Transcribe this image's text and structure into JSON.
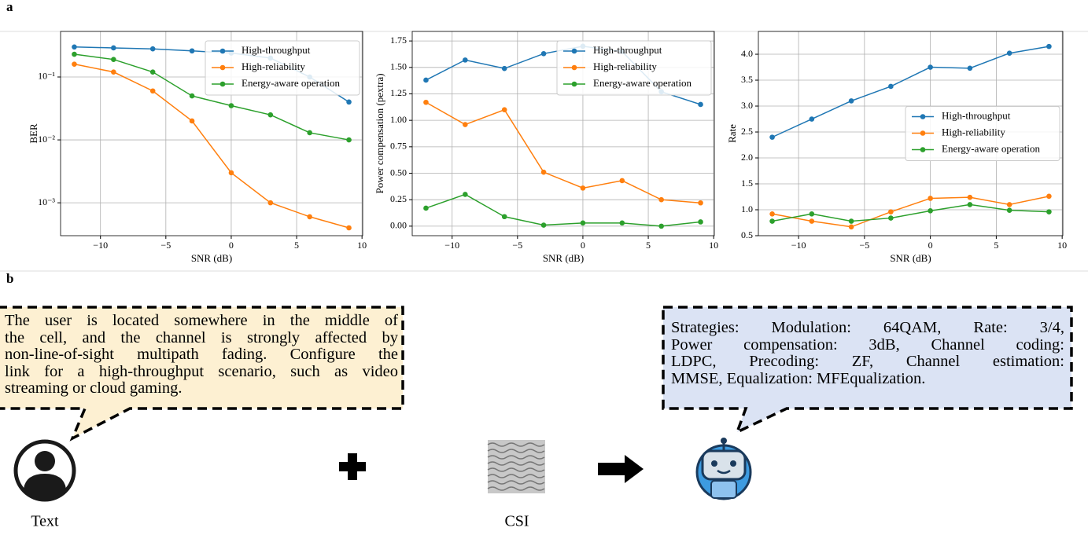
{
  "panels": [
    "a",
    "b"
  ],
  "chart_data": [
    {
      "type": "line",
      "xlabel": "SNR (dB)",
      "ylabel": "BER",
      "yscale": "log",
      "grid": true,
      "legend_loc": "upper right",
      "x": [
        -12,
        -9,
        -6,
        -3,
        0,
        3,
        6,
        9
      ],
      "xlim": [
        -13.05,
        10.05
      ],
      "xticks": [
        {
          "value": -10,
          "label": "−10"
        },
        {
          "value": -5,
          "label": "−5"
        },
        0,
        5,
        10
      ],
      "ylim": [
        0.0003,
        0.53
      ],
      "yticks": [
        {
          "value": 0.001,
          "label": "10⁻³"
        },
        {
          "value": 0.01,
          "label": "10⁻²"
        },
        {
          "value": 0.1,
          "label": "10⁻¹"
        }
      ],
      "series": [
        {
          "name": "High-throughput",
          "color": "#1f77b4",
          "values": [
            0.3,
            0.29,
            0.28,
            0.26,
            0.24,
            0.2,
            0.1,
            0.04
          ]
        },
        {
          "name": "High-reliability",
          "color": "#ff7f0e",
          "values": [
            0.16,
            0.12,
            0.06,
            0.02,
            0.003,
            0.001,
            0.0006,
            0.0004
          ]
        },
        {
          "name": "Energy-aware operation",
          "color": "#2ca02c",
          "values": [
            0.23,
            0.19,
            0.12,
            0.05,
            0.035,
            0.025,
            0.013,
            0.01
          ]
        }
      ]
    },
    {
      "type": "line",
      "xlabel": "SNR (dB)",
      "ylabel": "Power compensation (pextra)",
      "grid": true,
      "legend_loc": "upper right",
      "x": [
        -12,
        -9,
        -6,
        -3,
        0,
        3,
        6,
        9
      ],
      "xlim": [
        -13.05,
        10.05
      ],
      "xticks": [
        {
          "value": -10,
          "label": "−10"
        },
        {
          "value": -5,
          "label": "−5"
        },
        0,
        5,
        10
      ],
      "ylim": [
        -0.09,
        1.84
      ],
      "yticks": [
        {
          "value": 0,
          "label": "0.00"
        },
        0.25,
        {
          "value": 0.5,
          "label": "0.50"
        },
        0.75,
        {
          "value": 1,
          "label": "1.00"
        },
        1.25,
        {
          "value": 1.5,
          "label": "1.50"
        },
        1.75
      ],
      "series": [
        {
          "name": "High-throughput",
          "color": "#1f77b4",
          "values": [
            1.38,
            1.57,
            1.49,
            1.63,
            1.7,
            1.65,
            1.27,
            1.15
          ]
        },
        {
          "name": "High-reliability",
          "color": "#ff7f0e",
          "values": [
            1.17,
            0.96,
            1.1,
            0.51,
            0.36,
            0.43,
            0.25,
            0.22
          ]
        },
        {
          "name": "Energy-aware operation",
          "color": "#2ca02c",
          "values": [
            0.17,
            0.3,
            0.09,
            0.01,
            0.03,
            0.03,
            0,
            0.04
          ]
        }
      ]
    },
    {
      "type": "line",
      "xlabel": "SNR (dB)",
      "ylabel": "Rate",
      "grid": true,
      "legend_loc": "center right",
      "x": [
        -12,
        -9,
        -6,
        -3,
        0,
        3,
        6,
        9
      ],
      "xlim": [
        -13.05,
        10.05
      ],
      "xticks": [
        {
          "value": -10,
          "label": "−10"
        },
        {
          "value": -5,
          "label": "−5"
        },
        0,
        5,
        10
      ],
      "ylim": [
        0.5,
        4.44
      ],
      "yticks": [
        0.5,
        {
          "value": 1,
          "label": "1.0"
        },
        1.5,
        {
          "value": 2,
          "label": "2.0"
        },
        2.5,
        {
          "value": 3,
          "label": "3.0"
        },
        3.5,
        {
          "value": 4,
          "label": "4.0"
        }
      ],
      "series": [
        {
          "name": "High-throughput",
          "color": "#1f77b4",
          "values": [
            2.4,
            2.75,
            3.1,
            3.38,
            3.75,
            3.73,
            4.02,
            4.15
          ]
        },
        {
          "name": "High-reliability",
          "color": "#ff7f0e",
          "values": [
            0.92,
            0.78,
            0.67,
            0.96,
            1.22,
            1.24,
            1.1,
            1.26
          ]
        },
        {
          "name": "Energy-aware operation",
          "color": "#2ca02c",
          "values": [
            0.78,
            0.92,
            0.78,
            0.84,
            0.98,
            1.1,
            0.99,
            0.96
          ]
        }
      ]
    }
  ],
  "diagram": {
    "user_prompt": [
      "The user is located somewhere in the middle of",
      "the cell, and the channel is strongly affected by",
      "non-line-of-sight multipath fading. Configure the",
      "link for a high-throughput scenario, such as video",
      "streaming or cloud gaming."
    ],
    "strategies": [
      "Strategies: Modulation: 64QAM, Rate: 3/4,",
      "Power compensation: 3dB, Channel coding:",
      "LDPC, Precoding: ZF, Channel estimation:",
      "MMSE, Equalization: MFEqualization."
    ],
    "user_label": "Text",
    "csi_label": "CSI"
  }
}
